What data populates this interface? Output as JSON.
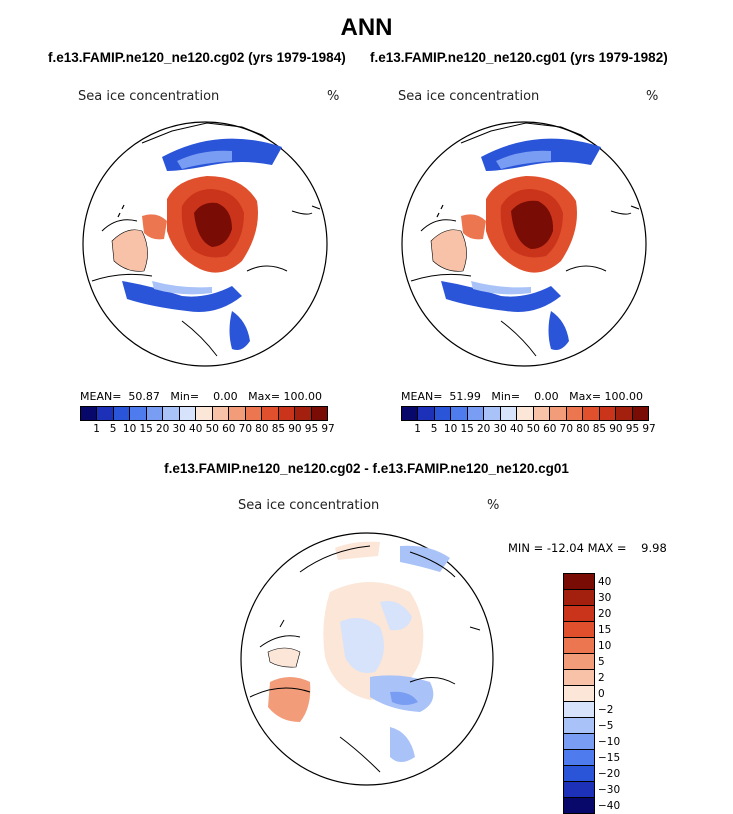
{
  "title": "ANN",
  "panel_left": {
    "case_title": "f.e13.FAMIP.ne120_ne120.cg02 (yrs 1979-1984)",
    "variable": "Sea ice concentration",
    "units": "%",
    "stats": "MEAN=  50.87   Min=    0.00   Max= 100.00"
  },
  "panel_right": {
    "case_title": "f.e13.FAMIP.ne120_ne120.cg01 (yrs 1979-1982)",
    "variable": "Sea ice concentration",
    "units": "%",
    "stats": "MEAN=  51.99   Min=    0.00   Max= 100.00"
  },
  "abs_colorbar": {
    "colors": [
      "#08086b",
      "#1c30b8",
      "#2a55d8",
      "#4e7bee",
      "#7a9df4",
      "#a9c2f7",
      "#d6e3fb",
      "#fbe6d8",
      "#f7c2a8",
      "#f29c7a",
      "#ec7650",
      "#e0502c",
      "#c9341a",
      "#a3200f",
      "#7a0c06"
    ],
    "labels": [
      "1",
      "5",
      "10",
      "15",
      "20",
      "30",
      "40",
      "50",
      "60",
      "70",
      "80",
      "85",
      "90",
      "95",
      "97"
    ]
  },
  "diff_panel": {
    "case_title": "f.e13.FAMIP.ne120_ne120.cg02 - f.e13.FAMIP.ne120_ne120.cg01",
    "variable": "Sea ice concentration",
    "units": "%",
    "stats": "MIN = -12.04 MAX =    9.98"
  },
  "diff_colorbar": {
    "colors": [
      "#7a0c06",
      "#a3200f",
      "#c9341a",
      "#e0502c",
      "#ec7650",
      "#f29c7a",
      "#f7c2a8",
      "#fbe6d8",
      "#d6e3fb",
      "#a9c2f7",
      "#7a9df4",
      "#4e7bee",
      "#2a55d8",
      "#1c30b8",
      "#08086b"
    ],
    "labels": [
      "40",
      "30",
      "20",
      "15",
      "10",
      "5",
      "2",
      "0",
      "−2",
      "−5",
      "−10",
      "−15",
      "−20",
      "−30",
      "−40"
    ]
  }
}
